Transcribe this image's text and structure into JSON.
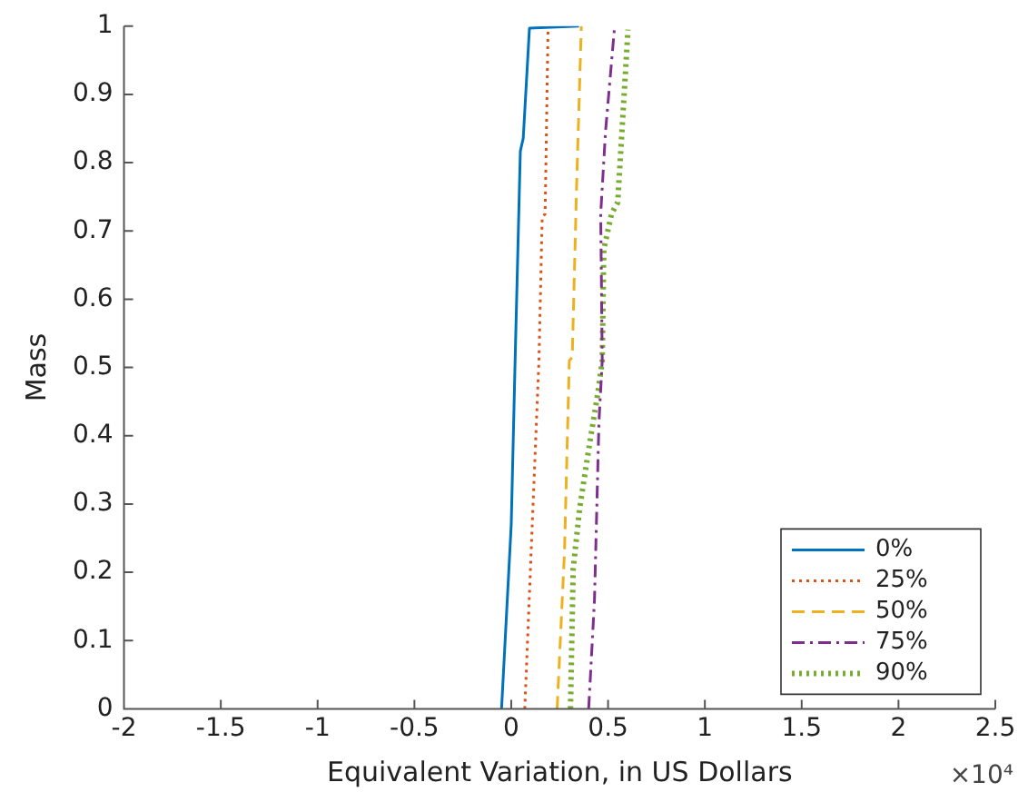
{
  "chart_data": {
    "type": "line",
    "xlabel": "Equivalent Variation, in US Dollars",
    "ylabel": "Mass",
    "xlim": [
      -2,
      2.5
    ],
    "xticks": [
      -2,
      -1.5,
      -1,
      -0.5,
      0,
      0.5,
      1,
      1.5,
      2,
      2.5
    ],
    "ylim": [
      0,
      1
    ],
    "yticks": [
      0,
      0.1,
      0.2,
      0.3,
      0.4,
      0.5,
      0.6,
      0.7,
      0.8,
      0.9,
      1
    ],
    "grid": false,
    "legend": "bottom right",
    "marker": "none",
    "annotations": [
      "×10⁴"
    ],
    "series": [
      {
        "name": "0%",
        "color": "#0072bd",
        "line_style": "solid",
        "x": [
          -0.05,
          0.0,
          0.02,
          0.047,
          0.062,
          0.094,
          0.35
        ],
        "values": [
          0,
          0.27,
          0.51,
          0.817,
          0.836,
          0.997,
          1.0
        ]
      },
      {
        "name": "25%",
        "color": "#d95319",
        "line_style": "dotted",
        "x": [
          0.07,
          0.118,
          0.143,
          0.16,
          0.175,
          0.19,
          0.2
        ],
        "values": [
          0,
          0.336,
          0.51,
          0.72,
          0.725,
          0.995,
          1.0
        ]
      },
      {
        "name": "50%",
        "color": "#edb120",
        "line_style": "dashed",
        "x": [
          0.237,
          0.275,
          0.3,
          0.315,
          0.337,
          0.362
        ],
        "values": [
          0,
          0.23,
          0.51,
          0.515,
          0.76,
          1.0
        ]
      },
      {
        "name": "75%",
        "color": "#7e2f8e",
        "line_style": "dashdot",
        "x": [
          0.4,
          0.43,
          0.453,
          0.47,
          0.462,
          0.487,
          0.534
        ],
        "values": [
          0,
          0.16,
          0.42,
          0.51,
          0.725,
          0.846,
          1.0
        ]
      },
      {
        "name": "90%",
        "color": "#77ac30",
        "line_style": "dotted",
        "x": [
          0.306,
          0.32,
          0.353,
          0.4,
          0.446,
          0.47,
          0.478,
          0.518,
          0.55,
          0.603
        ],
        "values": [
          0,
          0.205,
          0.293,
          0.38,
          0.46,
          0.51,
          0.673,
          0.725,
          0.742,
          0.995
        ]
      }
    ]
  }
}
